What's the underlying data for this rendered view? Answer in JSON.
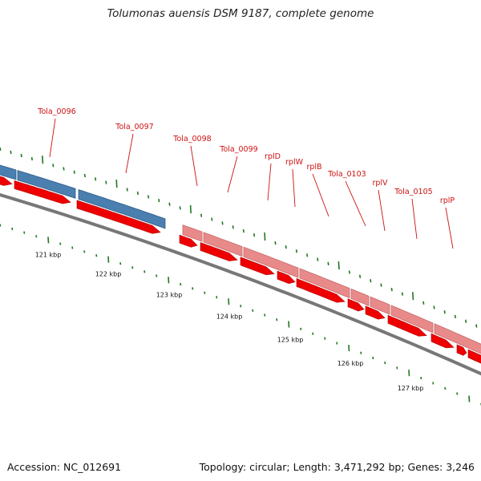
{
  "title": "Tolumonas auensis DSM 9187, complete genome",
  "footer": {
    "accession": "Accession: NC_012691",
    "summary": "Topology: circular; Length: 3,471,292 bp; Genes: 3,246"
  },
  "colors": {
    "background": "#ffffff",
    "gene_label": "#cc1111",
    "leader_line": "#cc1111",
    "tick": "#227722",
    "backbone": "#777777",
    "feature_blue": "#4a7fb0",
    "feature_pink": "#e88a8a",
    "cds_red": "#ee0000"
  },
  "scale": {
    "unit": "kbp",
    "tick_labels": [
      "121 kbp",
      "122 kbp",
      "123 kbp",
      "124 kbp",
      "125 kbp",
      "126 kbp",
      "127 kbp"
    ]
  },
  "gene_labels": [
    "Tola_0096",
    "Tola_0097",
    "Tola_0098",
    "Tola_0099",
    "rplD",
    "rplW",
    "rplB",
    "Tola_0103",
    "rplV",
    "Tola_0105",
    "rplP"
  ],
  "features_blue_count_visible": 2,
  "features_pink_count_visible": 7
}
